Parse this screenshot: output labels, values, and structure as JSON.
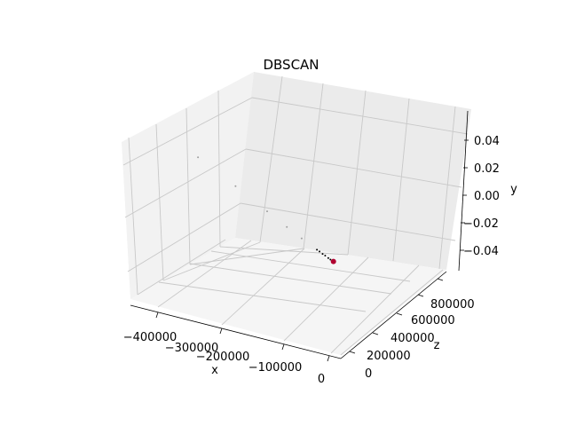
{
  "chart_data": {
    "type": "scatter",
    "projection": "3d",
    "title": "DBSCAN",
    "xlabel": "x",
    "ylabel": "y",
    "zlabel": "z",
    "x_ticks": [
      "−400000",
      "−300000",
      "−200000",
      "−100000",
      "0"
    ],
    "z_ticks": [
      "0",
      "200000",
      "400000",
      "600000",
      "800000"
    ],
    "y_ticks": [
      "0.04",
      "0.02",
      "0.00",
      "−0.02",
      "−0.04"
    ],
    "grid": true,
    "series": [
      {
        "color": "#000000",
        "points": [
          {
            "x": -5000,
            "y": 0.0,
            "z": 60000
          },
          {
            "x": -8000,
            "y": 0.0,
            "z": 70000
          },
          {
            "x": -12000,
            "y": 0.0,
            "z": 85000
          },
          {
            "x": -16000,
            "y": 0.0,
            "z": 95000
          },
          {
            "x": -20000,
            "y": 0.0,
            "z": 110000
          },
          {
            "x": -24000,
            "y": 0.0,
            "z": 120000
          }
        ]
      },
      {
        "color": "#a0a0a0",
        "points": [
          {
            "x": -45000,
            "y": 0.0,
            "z": 190000
          },
          {
            "x": -65000,
            "y": 0.0,
            "z": 260000
          },
          {
            "x": -90000,
            "y": 0.0,
            "z": 360000
          },
          {
            "x": -130000,
            "y": 0.0,
            "z": 520000
          },
          {
            "x": -180000,
            "y": 0.0,
            "z": 700000
          }
        ]
      },
      {
        "color": "#b00030",
        "points": [
          {
            "x": 0,
            "y": 0.0,
            "z": 50000
          }
        ]
      }
    ]
  }
}
